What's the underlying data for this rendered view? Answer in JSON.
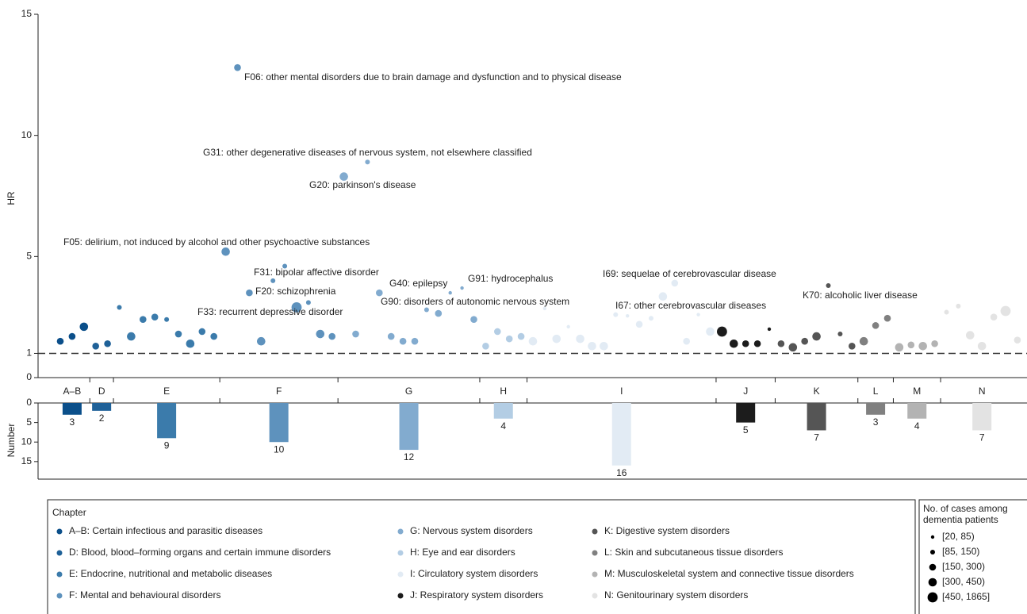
{
  "chart_data": {
    "type": "scatter",
    "y_label": "HR",
    "ylim": [
      0,
      15
    ],
    "yticks": [
      0,
      1,
      5,
      10,
      15
    ],
    "reference_line": 1,
    "legend_title": "Chapter",
    "series": [
      {
        "chapter": "A–B",
        "name": "A–B: Certain infectious and parasitic diseases",
        "color": "#0b4f8a",
        "values": [
          1.5,
          1.7,
          2.1
        ],
        "cases": [
          200,
          200,
          350
        ],
        "number": 3
      },
      {
        "chapter": "D",
        "name": "D: Blood, blood–forming organs and certain immune disorders",
        "color": "#1f6198",
        "values": [
          1.3,
          1.4
        ],
        "cases": [
          250,
          200
        ],
        "number": 2
      },
      {
        "chapter": "E",
        "name": "E: Endocrine, nutritional and metabolic diseases",
        "color": "#3b7bab",
        "values": [
          2.9,
          1.7,
          2.4,
          2.5,
          2.4,
          1.8,
          1.4,
          1.9,
          1.7
        ],
        "cases": [
          100,
          350,
          200,
          150,
          100,
          150,
          400,
          200,
          250
        ],
        "number": 9
      },
      {
        "chapter": "F",
        "name": "F: Mental and behavioural disorders",
        "color": "#5e92bd",
        "values": [
          5.2,
          12.8,
          3.5,
          1.5,
          4.0,
          4.6,
          2.9,
          3.1,
          1.8,
          1.7
        ],
        "cases": [
          300,
          200,
          200,
          300,
          100,
          100,
          500,
          100,
          300,
          200
        ],
        "number": 10
      },
      {
        "chapter": "G",
        "name": "G: Nervous system disorders",
        "color": "#82abcf",
        "values": [
          8.3,
          1.8,
          8.9,
          3.5,
          1.7,
          1.5,
          1.5,
          2.8,
          2.65,
          3.5,
          3.7,
          2.4
        ],
        "cases": [
          350,
          150,
          100,
          200,
          200,
          200,
          150,
          100,
          200,
          60,
          60,
          150
        ],
        "number": 12
      },
      {
        "chapter": "H",
        "name": "H: Eye and ear disorders",
        "color": "#b3cde4",
        "values": [
          1.3,
          1.9,
          1.6,
          1.7
        ],
        "cases": [
          200,
          150,
          200,
          200
        ],
        "number": 4
      },
      {
        "chapter": "I",
        "name": "I: Circulatory system disorders",
        "color": "#e2ebf4",
        "values": [
          1.5,
          2.85,
          1.6,
          2.1,
          1.6,
          1.3,
          1.3,
          2.6,
          2.55,
          2.2,
          2.45,
          3.35,
          3.9,
          1.5,
          2.6,
          1.9
        ],
        "cases": [
          400,
          50,
          400,
          60,
          400,
          300,
          300,
          100,
          60,
          200,
          100,
          350,
          200,
          150,
          60,
          300
        ],
        "number": 16
      },
      {
        "chapter": "J",
        "name": "J: Respiratory system disorders",
        "color": "#1c1c1c",
        "values": [
          1.9,
          1.4,
          1.4,
          1.4,
          2.0
        ],
        "cases": [
          450,
          350,
          250,
          250,
          70
        ],
        "number": 5
      },
      {
        "chapter": "K",
        "name": "K: Digestive system disorders",
        "color": "#555555",
        "values": [
          1.4,
          1.25,
          1.5,
          1.7,
          3.8,
          1.8,
          1.3
        ],
        "cases": [
          200,
          350,
          250,
          350,
          100,
          100,
          250
        ],
        "number": 7
      },
      {
        "chapter": "L",
        "name": "L: Skin and subcutaneous tissue disorders",
        "color": "#808080",
        "values": [
          1.5,
          2.15,
          2.45
        ],
        "cases": [
          350,
          150,
          150
        ],
        "number": 3
      },
      {
        "chapter": "M",
        "name": "M: Musculoskeletal system and connective tissue disorders",
        "color": "#b3b3b3",
        "values": [
          1.25,
          1.35,
          1.3,
          1.4
        ],
        "cases": [
          350,
          250,
          350,
          250
        ],
        "number": 4
      },
      {
        "chapter": "N",
        "name": "N: Genitourinary system disorders",
        "color": "#e3e3e3",
        "values": [
          2.7,
          2.95,
          1.75,
          1.3,
          2.5,
          2.75,
          1.55
        ],
        "cases": [
          100,
          100,
          300,
          350,
          200,
          500,
          150
        ],
        "number": 7
      }
    ],
    "annotations": [
      "F06: other mental disorders due to brain damage and dysfunction and to physical disease",
      "G31: other degenerative diseases of nervous system, not elsewhere classified",
      "G20: parkinson's disease",
      "F05: delirium, not induced by alcohol and other psychoactive substances",
      "F31: bipolar affective disorder",
      "F20: schizophrenia",
      "F33: recurrent depressive disorder",
      "G40: epilepsy",
      "G91: hydrocephalus",
      "G90: disorders of autonomic nervous system",
      "I69: sequelae of cerebrovascular disease",
      "I67: other cerebrovascular diseases",
      "K70: alcoholic liver disease"
    ],
    "bar_panel": {
      "type": "bar",
      "y_label": "Number",
      "ylim": [
        0,
        19.5
      ],
      "yticks": [
        0,
        5,
        10,
        15
      ]
    },
    "size_legend": {
      "title": [
        "No. of cases among",
        "dementia patients"
      ],
      "bins": [
        20,
        85,
        150,
        300,
        450,
        1865
      ],
      "labels": [
        "[20, 85)",
        "[85, 150)",
        "[150, 300)",
        "[300, 450)",
        "[450, 1865]"
      ]
    }
  }
}
